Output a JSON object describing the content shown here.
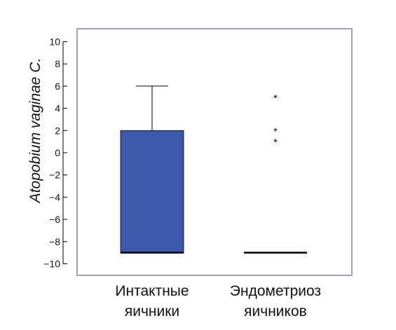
{
  "chart_data": {
    "type": "box",
    "ylabel": "Atopobium vaginae C.",
    "ylim": [
      -11,
      11
    ],
    "yticks": [
      "10",
      "8",
      "6",
      "4",
      "2",
      "0",
      "−2",
      "−4",
      "−6",
      "−8",
      "−10"
    ],
    "ytick_values": [
      10,
      8,
      6,
      4,
      2,
      0,
      -2,
      -4,
      -6,
      -8,
      -10
    ],
    "categories": [
      {
        "line1": "Интактные",
        "line2": "яичники"
      },
      {
        "line1": "Эндометриоз",
        "line2": "яичников"
      }
    ],
    "boxes": [
      {
        "min": -9,
        "q1": -9,
        "median": -9,
        "q3": 2,
        "max": 6,
        "outliers": []
      },
      {
        "min": -9,
        "q1": -9,
        "median": -9,
        "q3": -9,
        "max": -9,
        "outliers": [
          5,
          2,
          1
        ]
      }
    ],
    "colors": {
      "box_fill": "#3c58a8",
      "frame": "#8080b0",
      "median": "#000000"
    },
    "outlier_marker": "*"
  }
}
